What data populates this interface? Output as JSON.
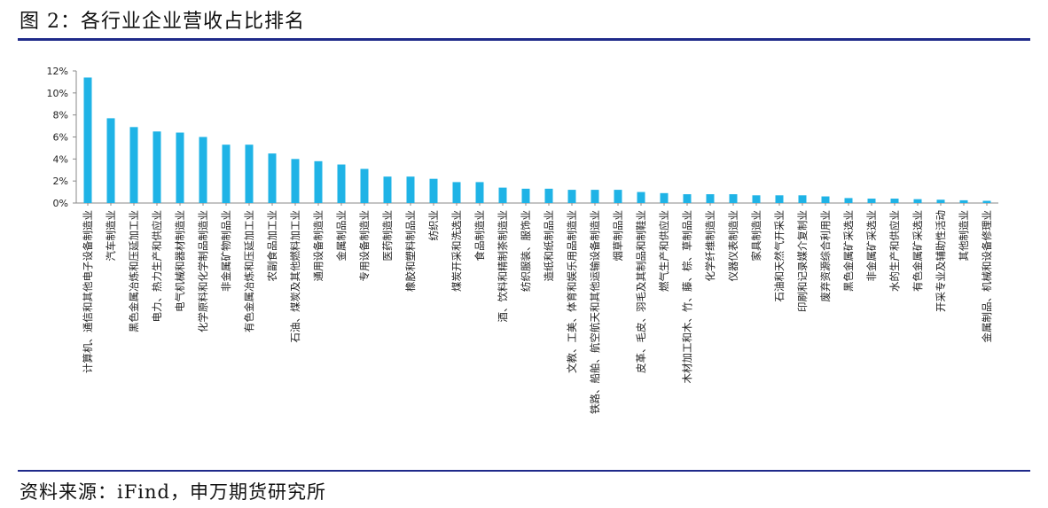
{
  "header": {
    "title": "图 2：各行业企业营收占比排名"
  },
  "footer": {
    "source": "资料来源：iFind，申万期货研究所"
  },
  "chart_data": {
    "type": "bar",
    "categories": [
      "计算机、通信和其他电子设备制造业",
      "汽车制造业",
      "黑色金属冶炼和压延加工业",
      "电力、热力生产和供应业",
      "电气机械和器材制造业",
      "化学原料和化学制品制造业",
      "非金属矿物制品业",
      "有色金属冶炼和压延加工业",
      "农副食品加工业",
      "石油、煤炭及其他燃料加工业",
      "通用设备制造业",
      "金属制品业",
      "专用设备制造业",
      "医药制造业",
      "橡胶和塑料制品业",
      "纺织业",
      "煤炭开采和洗选业",
      "食品制造业",
      "酒、饮料和精制茶制造业",
      "纺织服装、服饰业",
      "造纸和纸制品业",
      "文教、工美、体育和娱乐用品制造业",
      "铁路、船舶、航空航天和其他运输设备制造业",
      "烟草制品业",
      "皮革、毛皮、羽毛及其制品和制鞋业",
      "燃气生产和供应业",
      "木材加工和木、竹、藤、棕、草制品业",
      "化学纤维制造业",
      "仪器仪表制造业",
      "家具制造业",
      "石油和天然气开采业",
      "印刷和记录媒介复制业",
      "废弃资源综合利用业",
      "黑色金属矿采选业",
      "非金属矿采选业",
      "水的生产和供应业",
      "有色金属矿采选业",
      "开采专业及辅助性活动",
      "其他制造业",
      "金属制品、机械和设备修理业"
    ],
    "values": [
      11.4,
      7.7,
      6.9,
      6.5,
      6.4,
      6.0,
      5.3,
      5.3,
      4.5,
      4.0,
      3.8,
      3.5,
      3.1,
      2.4,
      2.4,
      2.2,
      1.9,
      1.9,
      1.4,
      1.3,
      1.3,
      1.2,
      1.2,
      1.2,
      1.0,
      0.9,
      0.8,
      0.8,
      0.8,
      0.7,
      0.7,
      0.7,
      0.6,
      0.45,
      0.4,
      0.4,
      0.35,
      0.3,
      0.25,
      0.2
    ],
    "ylim": [
      0,
      12
    ],
    "yticks": [
      0,
      2,
      4,
      6,
      8,
      10,
      12
    ],
    "ytick_labels": [
      "0%",
      "2%",
      "4%",
      "6%",
      "8%",
      "10%",
      "12%"
    ],
    "bar_color": "#1fb3e6",
    "grid": false,
    "legend": "none"
  }
}
